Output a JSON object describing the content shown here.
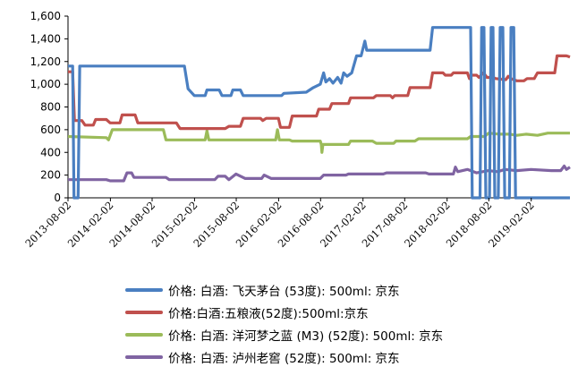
{
  "chart_data": {
    "type": "line",
    "ylim": [
      0,
      1600
    ],
    "yticks": [
      "0",
      "200",
      "400",
      "600",
      "800",
      "1,000",
      "1,200",
      "1,400",
      "1,600"
    ],
    "xticks": [
      "2013-08-02",
      "2014-02-02",
      "2014-08-02",
      "2015-02-02",
      "2015-08-02",
      "2016-02-02",
      "2016-08-02",
      "2017-02-02",
      "2017-08-02",
      "2018-02-02",
      "2018-08-02",
      "2019-02-02"
    ],
    "x_range": [
      "2013-08-02",
      "2019-07-20"
    ],
    "grid": false,
    "legend_placement": "bottom",
    "series": [
      {
        "name": "价格: 白酒: 飞天茅台 (53度): 500ml: 京东",
        "color": "#4a7fc1",
        "points": [
          [
            "2013-08-02",
            1160
          ],
          [
            "2013-08-22",
            1160
          ],
          [
            "2013-08-28",
            0
          ],
          [
            "2013-09-15",
            0
          ],
          [
            "2013-09-22",
            1160
          ],
          [
            "2014-12-20",
            1160
          ],
          [
            "2015-01-05",
            960
          ],
          [
            "2015-02-01",
            900
          ],
          [
            "2015-03-20",
            900
          ],
          [
            "2015-03-28",
            950
          ],
          [
            "2015-05-20",
            950
          ],
          [
            "2015-06-01",
            900
          ],
          [
            "2015-07-10",
            900
          ],
          [
            "2015-07-18",
            950
          ],
          [
            "2015-08-20",
            950
          ],
          [
            "2015-09-01",
            900
          ],
          [
            "2016-02-15",
            900
          ],
          [
            "2016-02-25",
            920
          ],
          [
            "2016-06-01",
            930
          ],
          [
            "2016-07-01",
            970
          ],
          [
            "2016-08-01",
            1000
          ],
          [
            "2016-08-15",
            1100
          ],
          [
            "2016-08-25",
            1020
          ],
          [
            "2016-09-10",
            1050
          ],
          [
            "2016-09-25",
            1010
          ],
          [
            "2016-10-15",
            1060
          ],
          [
            "2016-10-30",
            1010
          ],
          [
            "2016-11-10",
            1100
          ],
          [
            "2016-11-25",
            1070
          ],
          [
            "2016-12-15",
            1100
          ],
          [
            "2017-01-05",
            1250
          ],
          [
            "2017-01-25",
            1250
          ],
          [
            "2017-02-10",
            1380
          ],
          [
            "2017-02-18",
            1300
          ],
          [
            "2017-11-20",
            1300
          ],
          [
            "2017-12-01",
            1500
          ],
          [
            "2018-05-15",
            1500
          ],
          [
            "2018-05-22",
            0
          ],
          [
            "2018-06-25",
            0
          ],
          [
            "2018-07-02",
            1500
          ],
          [
            "2018-07-12",
            1500
          ],
          [
            "2018-07-20",
            0
          ],
          [
            "2018-08-05",
            0
          ],
          [
            "2018-08-12",
            1500
          ],
          [
            "2018-08-20",
            1500
          ],
          [
            "2018-08-28",
            0
          ],
          [
            "2018-09-12",
            0
          ],
          [
            "2018-09-20",
            1500
          ],
          [
            "2018-10-02",
            1500
          ],
          [
            "2018-10-10",
            0
          ],
          [
            "2018-10-30",
            0
          ],
          [
            "2018-11-06",
            1500
          ],
          [
            "2018-11-18",
            1500
          ],
          [
            "2018-11-26",
            0
          ],
          [
            "2019-07-20",
            0
          ]
        ]
      },
      {
        "name": "价格:白酒:五粮液(52度):500ml:京东",
        "color": "#c0504d",
        "points": [
          [
            "2013-08-02",
            1110
          ],
          [
            "2013-08-22",
            1110
          ],
          [
            "2013-08-30",
            680
          ],
          [
            "2013-10-01",
            680
          ],
          [
            "2013-10-15",
            640
          ],
          [
            "2013-11-20",
            640
          ],
          [
            "2013-11-30",
            690
          ],
          [
            "2014-01-15",
            690
          ],
          [
            "2014-02-01",
            660
          ],
          [
            "2014-03-15",
            660
          ],
          [
            "2014-03-25",
            730
          ],
          [
            "2014-05-20",
            730
          ],
          [
            "2014-06-01",
            660
          ],
          [
            "2014-11-15",
            660
          ],
          [
            "2014-12-01",
            610
          ],
          [
            "2015-06-15",
            610
          ],
          [
            "2015-07-01",
            630
          ],
          [
            "2015-08-20",
            630
          ],
          [
            "2015-09-01",
            700
          ],
          [
            "2015-11-15",
            700
          ],
          [
            "2015-11-25",
            680
          ],
          [
            "2015-12-10",
            700
          ],
          [
            "2016-02-01",
            700
          ],
          [
            "2016-02-10",
            620
          ],
          [
            "2016-03-20",
            620
          ],
          [
            "2016-04-01",
            720
          ],
          [
            "2016-07-15",
            720
          ],
          [
            "2016-07-25",
            780
          ],
          [
            "2016-09-10",
            780
          ],
          [
            "2016-09-20",
            830
          ],
          [
            "2016-12-01",
            830
          ],
          [
            "2016-12-10",
            880
          ],
          [
            "2017-03-20",
            880
          ],
          [
            "2017-04-01",
            900
          ],
          [
            "2017-06-01",
            900
          ],
          [
            "2017-06-10",
            880
          ],
          [
            "2017-06-20",
            900
          ],
          [
            "2017-08-15",
            900
          ],
          [
            "2017-08-25",
            970
          ],
          [
            "2017-11-20",
            970
          ],
          [
            "2017-12-01",
            1100
          ],
          [
            "2018-01-15",
            1100
          ],
          [
            "2018-01-25",
            1080
          ],
          [
            "2018-02-20",
            1080
          ],
          [
            "2018-03-01",
            1100
          ],
          [
            "2018-05-01",
            1100
          ],
          [
            "2018-05-10",
            1050
          ],
          [
            "2018-05-20",
            1080
          ],
          [
            "2018-06-10",
            1080
          ],
          [
            "2018-06-20",
            1060
          ],
          [
            "2018-07-10",
            1100
          ],
          [
            "2018-07-25",
            1060
          ],
          [
            "2018-08-20",
            1060
          ],
          [
            "2018-09-01",
            1050
          ],
          [
            "2018-10-15",
            1040
          ],
          [
            "2018-10-25",
            1070
          ],
          [
            "2018-11-05",
            1050
          ],
          [
            "2018-12-01",
            1030
          ],
          [
            "2019-01-01",
            1030
          ],
          [
            "2019-01-15",
            1050
          ],
          [
            "2019-02-15",
            1050
          ],
          [
            "2019-03-01",
            1100
          ],
          [
            "2019-05-15",
            1100
          ],
          [
            "2019-05-25",
            1250
          ],
          [
            "2019-07-05",
            1250
          ],
          [
            "2019-07-20",
            1240
          ]
        ]
      },
      {
        "name": "价格: 白酒: 洋河梦之蓝 (M3) (52度): 500ml: 京东",
        "color": "#9bbb59",
        "points": [
          [
            "2013-08-02",
            540
          ],
          [
            "2014-01-15",
            530
          ],
          [
            "2014-01-25",
            510
          ],
          [
            "2014-02-10",
            600
          ],
          [
            "2014-09-20",
            600
          ],
          [
            "2014-10-01",
            510
          ],
          [
            "2015-03-20",
            510
          ],
          [
            "2015-03-28",
            590
          ],
          [
            "2015-04-05",
            510
          ],
          [
            "2016-01-20",
            510
          ],
          [
            "2016-01-28",
            600
          ],
          [
            "2016-02-05",
            510
          ],
          [
            "2016-03-20",
            510
          ],
          [
            "2016-04-01",
            500
          ],
          [
            "2016-08-01",
            500
          ],
          [
            "2016-08-05",
            470
          ],
          [
            "2016-08-08",
            400
          ],
          [
            "2016-08-12",
            470
          ],
          [
            "2016-12-01",
            470
          ],
          [
            "2016-12-10",
            500
          ],
          [
            "2017-03-15",
            500
          ],
          [
            "2017-04-01",
            480
          ],
          [
            "2017-06-15",
            480
          ],
          [
            "2017-06-25",
            500
          ],
          [
            "2017-09-15",
            500
          ],
          [
            "2017-10-01",
            520
          ],
          [
            "2018-05-01",
            520
          ],
          [
            "2018-05-15",
            540
          ],
          [
            "2018-07-15",
            540
          ],
          [
            "2018-08-01",
            570
          ],
          [
            "2018-09-15",
            560
          ],
          [
            "2018-11-01",
            560
          ],
          [
            "2018-12-01",
            550
          ],
          [
            "2019-01-10",
            560
          ],
          [
            "2019-03-01",
            550
          ],
          [
            "2019-04-15",
            570
          ],
          [
            "2019-07-20",
            570
          ]
        ]
      },
      {
        "name": "价格: 白酒: 泸州老窖 (52度): 500ml: 京东",
        "color": "#8064a2",
        "points": [
          [
            "2013-08-02",
            160
          ],
          [
            "2014-01-15",
            160
          ],
          [
            "2014-02-01",
            150
          ],
          [
            "2014-04-01",
            150
          ],
          [
            "2014-04-15",
            220
          ],
          [
            "2014-05-05",
            220
          ],
          [
            "2014-05-15",
            180
          ],
          [
            "2014-10-01",
            180
          ],
          [
            "2014-10-15",
            160
          ],
          [
            "2015-05-01",
            160
          ],
          [
            "2015-05-15",
            190
          ],
          [
            "2015-06-15",
            190
          ],
          [
            "2015-07-01",
            160
          ],
          [
            "2015-08-01",
            210
          ],
          [
            "2015-09-10",
            170
          ],
          [
            "2015-11-20",
            170
          ],
          [
            "2015-12-01",
            200
          ],
          [
            "2016-01-01",
            170
          ],
          [
            "2016-08-01",
            170
          ],
          [
            "2016-08-15",
            200
          ],
          [
            "2016-11-20",
            200
          ],
          [
            "2016-12-01",
            210
          ],
          [
            "2017-05-01",
            210
          ],
          [
            "2017-05-15",
            220
          ],
          [
            "2017-11-01",
            220
          ],
          [
            "2017-11-15",
            210
          ],
          [
            "2018-03-01",
            210
          ],
          [
            "2018-03-10",
            270
          ],
          [
            "2018-03-20",
            230
          ],
          [
            "2018-05-01",
            250
          ],
          [
            "2018-06-10",
            220
          ],
          [
            "2018-08-01",
            240
          ],
          [
            "2018-09-10",
            230
          ],
          [
            "2018-10-10",
            250
          ],
          [
            "2018-12-01",
            240
          ],
          [
            "2019-02-01",
            250
          ],
          [
            "2019-05-01",
            240
          ],
          [
            "2019-06-10",
            240
          ],
          [
            "2019-06-25",
            280
          ],
          [
            "2019-07-05",
            250
          ],
          [
            "2019-07-20",
            270
          ]
        ]
      }
    ]
  }
}
